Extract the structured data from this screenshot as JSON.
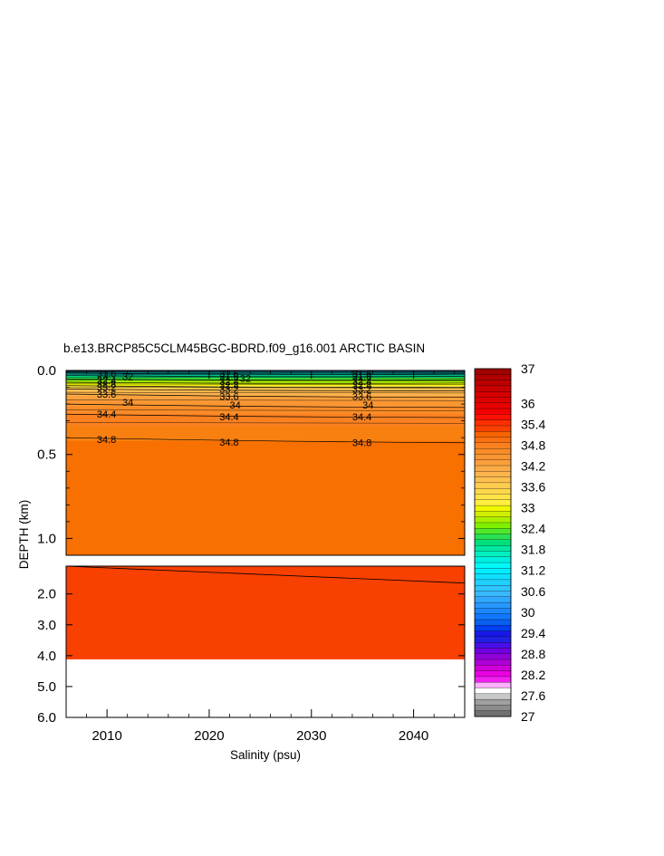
{
  "chart_data": {
    "type": "contour",
    "title": "b.e13.BRCP85C5CLM45BGC-BDRD.f09_g16.001 ARCTIC BASIN",
    "xlabel": "Salinity (psu)",
    "ylabel": "DEPTH (km)",
    "xlim": [
      2006,
      2045
    ],
    "x_ticks": [
      "2010",
      "2020",
      "2030",
      "2040"
    ],
    "upper_panel": {
      "ylim": [
        0.0,
        1.1
      ],
      "y_ticks": [
        "0.0",
        "0.5",
        "1.0"
      ],
      "contour_lines": [
        {
          "level": 34.8,
          "depth_start": 0.4,
          "depth_end": 0.43
        },
        {
          "level": 34.4,
          "depth_start": 0.26,
          "depth_end": 0.28
        },
        {
          "level": 34.0,
          "depth_start": 0.2,
          "depth_end": 0.22
        },
        {
          "level": 33.6,
          "depth_start": 0.14,
          "depth_end": 0.16
        },
        {
          "level": 33.2,
          "depth_start": 0.11,
          "depth_end": 0.12
        },
        {
          "level": 32.8,
          "depth_start": 0.09,
          "depth_end": 0.1
        },
        {
          "level": 32.4,
          "depth_start": 0.07,
          "depth_end": 0.075
        },
        {
          "level": 32.0,
          "depth_start": 0.05,
          "depth_end": 0.055
        },
        {
          "level": 31.6,
          "depth_start": 0.03,
          "depth_end": 0.035
        },
        {
          "level": 31.2,
          "depth_start": 0.015,
          "depth_end": 0.02
        }
      ],
      "contour_labels": [
        {
          "text": "31.6",
          "x": 2009,
          "depth": 0.02
        },
        {
          "text": "32",
          "x": 2011.5,
          "depth": 0.035
        },
        {
          "text": "32.4",
          "x": 2009,
          "depth": 0.06
        },
        {
          "text": "32.8",
          "x": 2009,
          "depth": 0.08
        },
        {
          "text": "33.2",
          "x": 2009,
          "depth": 0.1
        },
        {
          "text": "33.6",
          "x": 2009,
          "depth": 0.14
        },
        {
          "text": "34",
          "x": 2011.5,
          "depth": 0.19
        },
        {
          "text": "34.4",
          "x": 2009,
          "depth": 0.26
        },
        {
          "text": "34.8",
          "x": 2009,
          "depth": 0.41
        },
        {
          "text": "31.6",
          "x": 2021,
          "depth": 0.02
        },
        {
          "text": "31.6",
          "x": 2021,
          "depth": 0.035
        },
        {
          "text": "32",
          "x": 2023,
          "depth": 0.045
        },
        {
          "text": "32.4",
          "x": 2021,
          "depth": 0.065
        },
        {
          "text": "32.8",
          "x": 2021,
          "depth": 0.085
        },
        {
          "text": "33.2",
          "x": 2021,
          "depth": 0.11
        },
        {
          "text": "33.6",
          "x": 2021,
          "depth": 0.155
        },
        {
          "text": "34",
          "x": 2022,
          "depth": 0.205
        },
        {
          "text": "34.4",
          "x": 2021,
          "depth": 0.275
        },
        {
          "text": "34.8",
          "x": 2021,
          "depth": 0.425
        },
        {
          "text": "31.6",
          "x": 2034,
          "depth": 0.02
        },
        {
          "text": "31.6",
          "x": 2034,
          "depth": 0.035
        },
        {
          "text": "32.4",
          "x": 2034,
          "depth": 0.065
        },
        {
          "text": "32.8",
          "x": 2034,
          "depth": 0.085
        },
        {
          "text": "33.2",
          "x": 2034,
          "depth": 0.11
        },
        {
          "text": "33.6",
          "x": 2034,
          "depth": 0.155
        },
        {
          "text": "34",
          "x": 2035,
          "depth": 0.205
        },
        {
          "text": "34.4",
          "x": 2034,
          "depth": 0.275
        },
        {
          "text": "34.8",
          "x": 2034,
          "depth": 0.43
        }
      ]
    },
    "lower_panel": {
      "ylim": [
        1.1,
        6.0
      ],
      "y_ticks": [
        "2.0",
        "3.0",
        "4.0",
        "5.0",
        "6.0"
      ],
      "bottom_depth": 4.12,
      "fill_color": "#f84000",
      "contour_line": {
        "depth_start": 1.1,
        "depth_end": 1.65
      }
    },
    "colorbar": {
      "min": 27,
      "max": 37,
      "labels": [
        "37",
        "36",
        "35.4",
        "34.8",
        "34.2",
        "33.6",
        "33",
        "32.4",
        "31.8",
        "31.2",
        "30.6",
        "30",
        "29.4",
        "28.8",
        "28.2",
        "27.6",
        "27"
      ],
      "colors_top_to_bottom": [
        "#a00000",
        "#b00000",
        "#bb0000",
        "#c80000",
        "#d40000",
        "#dd0000",
        "#e80000",
        "#f40000",
        "#ff1000",
        "#ff3000",
        "#f84000",
        "#f86400",
        "#fa7010",
        "#fa8020",
        "#fa8c28",
        "#fa9632",
        "#faa03c",
        "#fbaa46",
        "#fcb44c",
        "#fdc050",
        "#fecc50",
        "#ffd84c",
        "#ffe448",
        "#fff040",
        "#f0f800",
        "#d0f000",
        "#aaf000",
        "#80f000",
        "#50e828",
        "#28e050",
        "#00e07a",
        "#00e8a0",
        "#00f0c0",
        "#00f0e0",
        "#00f8f8",
        "#00eeff",
        "#10e0ff",
        "#20d0ff",
        "#30c4ff",
        "#38b8ff",
        "#30a8ff",
        "#2898ff",
        "#1c88ff",
        "#1078ff",
        "#0860f0",
        "#0040f0",
        "#1818e8",
        "#2020e0",
        "#4810e8",
        "#7000e0",
        "#9000d8",
        "#b000d8",
        "#d000d8",
        "#e800e0",
        "#f020f0",
        "#ffb0ff",
        "#ffffff",
        "#c8c8c8",
        "#a0a0a0",
        "#8c8c8c",
        "#707070"
      ]
    },
    "fill_bands_upper": [
      {
        "depth": 0.0,
        "color": "#1e3264"
      },
      {
        "depth": 0.008,
        "color": "#008c8c"
      },
      {
        "depth": 0.018,
        "color": "#00b0a0"
      },
      {
        "depth": 0.03,
        "color": "#00e07a"
      },
      {
        "depth": 0.045,
        "color": "#50e828"
      },
      {
        "depth": 0.06,
        "color": "#aaf000"
      },
      {
        "depth": 0.075,
        "color": "#f0f800"
      },
      {
        "depth": 0.09,
        "color": "#ffe448"
      },
      {
        "depth": 0.105,
        "color": "#fdc050"
      },
      {
        "depth": 0.125,
        "color": "#fcb44c"
      },
      {
        "depth": 0.15,
        "color": "#faa03c"
      },
      {
        "depth": 0.18,
        "color": "#fa9632"
      },
      {
        "depth": 0.215,
        "color": "#fa8c28"
      },
      {
        "depth": 0.26,
        "color": "#fa8020"
      },
      {
        "depth": 0.33,
        "color": "#f88010"
      },
      {
        "depth": 0.42,
        "color": "#f87000"
      }
    ]
  }
}
